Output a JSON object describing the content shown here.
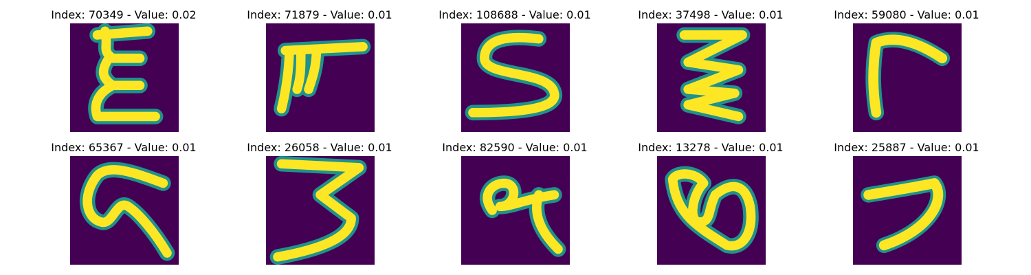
{
  "colors": {
    "background": "#440154",
    "stroke": "#fde725",
    "edge": "#21918c"
  },
  "panels": [
    {
      "title": "Index: 70349 - Value: 0.02",
      "glyph": "handwritten-E"
    },
    {
      "title": "Index: 71879 - Value: 0.01",
      "glyph": "handwritten-pi-like"
    },
    {
      "title": "Index: 108688 - Value: 0.01",
      "glyph": "handwritten-S"
    },
    {
      "title": "Index: 37498 - Value: 0.01",
      "glyph": "handwritten-zigzag"
    },
    {
      "title": "Index: 59080 - Value: 0.01",
      "glyph": "handwritten-gamma"
    },
    {
      "title": "Index: 65367 - Value: 0.01",
      "glyph": "handwritten-G"
    },
    {
      "title": "Index: 26058 - Value: 0.01",
      "glyph": "handwritten-3"
    },
    {
      "title": "Index: 82590 - Value: 0.01",
      "glyph": "handwritten-alpha"
    },
    {
      "title": "Index: 13278 - Value: 0.01",
      "glyph": "handwritten-loop"
    },
    {
      "title": "Index: 25887 - Value: 0.01",
      "glyph": "handwritten-7"
    }
  ]
}
